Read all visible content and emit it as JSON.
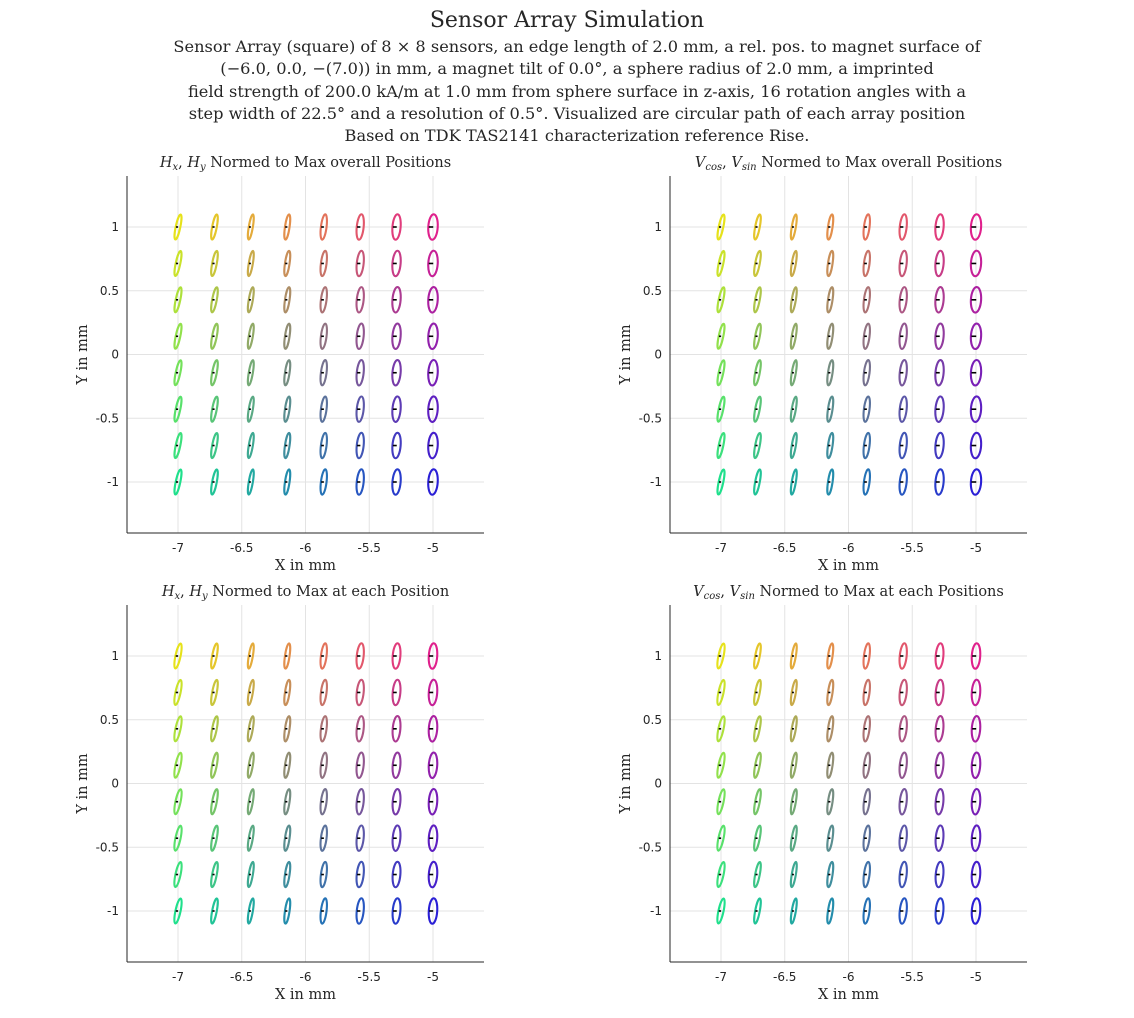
{
  "figure": {
    "title": "Sensor Array Simulation",
    "subtitle_lines": [
      "Sensor Array (square) of 8 × 8 sensors, an edge length of 2.0 mm, a rel. pos. to magnet surface of",
      "(−6.0, 0.0, −(7.0)) in mm, a magnet tilt of 0.0°, a sphere radius of 2.0 mm, a imprinted",
      "field strength of 200.0 kA/m at 1.0 mm from sphere surface in z-axis, 16 rotation angles with a",
      "step width of 22.5° and a resolution of 0.5°. Visualized are circular path of each array position",
      "Based on TDK TAS2141 characterization reference Rise."
    ]
  },
  "chart_data": [
    {
      "type": "scatter",
      "title": "H_x, H_y Normed to Max overall Positions",
      "title_parts": [
        "H",
        "x",
        ", ",
        "H",
        "y",
        " Normed to Max overall Positions"
      ],
      "xlabel": "X in mm",
      "ylabel": "Y in mm",
      "xlim": [
        -7.4,
        -4.6
      ],
      "ylim": [
        -1.4,
        1.4
      ],
      "xticks": [
        -7,
        -6.5,
        -6,
        -5.5,
        -5
      ],
      "yticks": [
        -1,
        -0.5,
        0,
        0.5,
        1
      ],
      "xtick_labels": [
        "-7",
        "-6.5",
        "-6",
        "-5.5",
        "-5"
      ],
      "ytick_labels": [
        "-1",
        "-0.5",
        "0",
        "0.5",
        "1"
      ],
      "grid": true,
      "sensor_x": [
        -7.0,
        -6.714,
        -6.429,
        -6.143,
        -5.857,
        -5.571,
        -5.286,
        -5.0
      ],
      "sensor_y": [
        1.0,
        0.714,
        0.429,
        0.143,
        -0.143,
        -0.429,
        -0.714,
        -1.0
      ],
      "path_rx": [
        0.018,
        0.018,
        0.016,
        0.018,
        0.022,
        0.027,
        0.032,
        0.037
      ],
      "path_ry": [
        0.1,
        0.1,
        0.1,
        0.1,
        0.1,
        0.1,
        0.1,
        0.1
      ]
    },
    {
      "type": "scatter",
      "title": "V_cos, V_sin Normed to Max overall Positions",
      "title_parts": [
        "V",
        "cos",
        ", ",
        "V",
        "sin",
        " Normed to Max overall Positions"
      ],
      "xlabel": "X in mm",
      "ylabel": "Y in mm",
      "xlim": [
        -7.4,
        -4.6
      ],
      "ylim": [
        -1.4,
        1.4
      ],
      "xticks": [
        -7,
        -6.5,
        -6,
        -5.5,
        -5
      ],
      "yticks": [
        -1,
        -0.5,
        0,
        0.5,
        1
      ],
      "xtick_labels": [
        "-7",
        "-6.5",
        "-6",
        "-5.5",
        "-5"
      ],
      "ytick_labels": [
        "-1",
        "-0.5",
        "0",
        "0.5",
        "1"
      ],
      "grid": true,
      "sensor_x": [
        -7.0,
        -6.714,
        -6.429,
        -6.143,
        -5.857,
        -5.571,
        -5.286,
        -5.0
      ],
      "sensor_y": [
        1.0,
        0.714,
        0.429,
        0.143,
        -0.143,
        -0.429,
        -0.714,
        -1.0
      ],
      "path_rx": [
        0.018,
        0.018,
        0.016,
        0.018,
        0.022,
        0.027,
        0.032,
        0.04
      ],
      "path_ry": [
        0.1,
        0.1,
        0.1,
        0.1,
        0.1,
        0.1,
        0.1,
        0.1
      ]
    },
    {
      "type": "scatter",
      "title": "H_x, H_y Normed to Max at each Position",
      "title_parts": [
        "H",
        "x",
        ", ",
        "H",
        "y",
        " Normed to Max at each Position"
      ],
      "xlabel": "X in mm",
      "ylabel": "Y in mm",
      "xlim": [
        -7.4,
        -4.6
      ],
      "ylim": [
        -1.4,
        1.4
      ],
      "xticks": [
        -7,
        -6.5,
        -6,
        -5.5,
        -5
      ],
      "yticks": [
        -1,
        -0.5,
        0,
        0.5,
        1
      ],
      "xtick_labels": [
        "-7",
        "-6.5",
        "-6",
        "-5.5",
        "-5"
      ],
      "ytick_labels": [
        "-1",
        "-0.5",
        "0",
        "0.5",
        "1"
      ],
      "grid": true,
      "sensor_x": [
        -7.0,
        -6.714,
        -6.429,
        -6.143,
        -5.857,
        -5.571,
        -5.286,
        -5.0
      ],
      "sensor_y": [
        1.0,
        0.714,
        0.429,
        0.143,
        -0.143,
        -0.429,
        -0.714,
        -1.0
      ],
      "path_rx": [
        0.02,
        0.018,
        0.016,
        0.018,
        0.022,
        0.027,
        0.03,
        0.033
      ],
      "path_ry": [
        0.1,
        0.1,
        0.1,
        0.1,
        0.1,
        0.1,
        0.1,
        0.1
      ]
    },
    {
      "type": "scatter",
      "title": "V_cos, V_sin Normed to Max at each Positions",
      "title_parts": [
        "V",
        "cos",
        ", ",
        "V",
        "sin",
        " Normed to Max at each Positions"
      ],
      "xlabel": "X in mm",
      "ylabel": "Y in mm",
      "xlim": [
        -7.4,
        -4.6
      ],
      "ylim": [
        -1.4,
        1.4
      ],
      "xticks": [
        -7,
        -6.5,
        -6,
        -5.5,
        -5
      ],
      "yticks": [
        -1,
        -0.5,
        0,
        0.5,
        1
      ],
      "xtick_labels": [
        "-7",
        "-6.5",
        "-6",
        "-5.5",
        "-5"
      ],
      "ytick_labels": [
        "-1",
        "-0.5",
        "0",
        "0.5",
        "1"
      ],
      "grid": true,
      "sensor_x": [
        -7.0,
        -6.714,
        -6.429,
        -6.143,
        -5.857,
        -5.571,
        -5.286,
        -5.0
      ],
      "sensor_y": [
        1.0,
        0.714,
        0.429,
        0.143,
        -0.143,
        -0.429,
        -0.714,
        -1.0
      ],
      "path_rx": [
        0.02,
        0.018,
        0.016,
        0.018,
        0.022,
        0.027,
        0.03,
        0.033
      ],
      "path_ry": [
        0.1,
        0.1,
        0.1,
        0.1,
        0.1,
        0.1,
        0.1,
        0.1
      ]
    }
  ],
  "colors": {
    "top_left": "#e6e21a",
    "top_right": "#e0208c",
    "bottom_left": "#1fe08c",
    "bottom_right": "#2a1fd6",
    "marker": "#000000",
    "axis": "#262626",
    "grid": "#e3e3e3"
  }
}
